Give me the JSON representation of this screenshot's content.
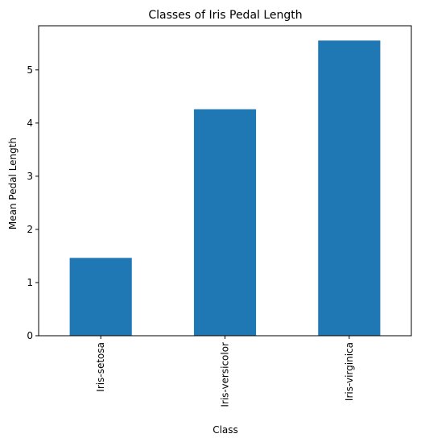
{
  "chart_data": {
    "type": "bar",
    "title": "Classes of Iris Pedal Length",
    "xlabel": "Class",
    "ylabel": "Mean Pedal Length",
    "categories": [
      "Iris-setosa",
      "Iris-versicolor",
      "Iris-virginica"
    ],
    "values": [
      1.464,
      4.26,
      5.552
    ],
    "ylim": [
      0,
      5.83
    ],
    "yticks": [
      0,
      1,
      2,
      3,
      4,
      5
    ],
    "ytick_labels": [
      "0",
      "1",
      "2",
      "3",
      "4",
      "5"
    ],
    "bar_color": "#1f77b4",
    "grid": false,
    "legend": "none"
  }
}
